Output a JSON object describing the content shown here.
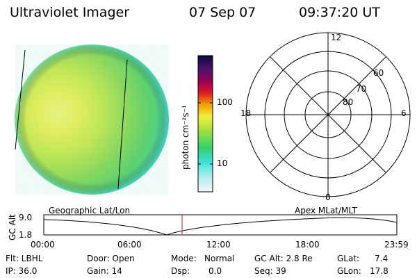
{
  "header": {
    "title": "Ultraviolet Imager",
    "date": "07 Sep 07",
    "time": "09:37:20 UT"
  },
  "colorbar": {
    "unit_label": "photon cm⁻²s⁻¹",
    "ticks": [
      "100",
      "10"
    ],
    "scale": "log",
    "colors": [
      "#f2f2f2",
      "#b8eef0",
      "#40e0d8",
      "#30d070",
      "#a0e040",
      "#f0f040",
      "#f0a000",
      "#e02020",
      "#a00050",
      "#501070",
      "#0a0a40"
    ]
  },
  "polar_grid": {
    "mlt_labels": [
      "12",
      "18",
      "6",
      "0"
    ],
    "lat_labels": [
      "60",
      "70",
      "80"
    ]
  },
  "orbit_panel": {
    "left_title": "Geographic Lat/Lon",
    "right_title": "Apex MLat/MLT",
    "y_axis_label": "GC Alt",
    "y_ticks": [
      "9.0",
      "1.8"
    ],
    "x_ticks": [
      "00:00",
      "06:00",
      "12:00",
      "18:00",
      "23:59"
    ],
    "current_time_marker": "09:37:20",
    "marker_color": "#d02020"
  },
  "info": {
    "flt": "Flt: LBHL",
    "ip": "IP: 36.0",
    "door": "Door: Open",
    "gain": "Gain: 14",
    "mode_label": "Mode:",
    "mode_value": "Normal",
    "dsp_label": "Dsp:",
    "dsp_value": "0.0",
    "gcalt": "GC Alt: 2.8 Re",
    "seq": "Seq: 39",
    "glat_label": "GLat:",
    "glat_value": "7.4",
    "glon_label": "GLon:",
    "glon_value": "17.8"
  }
}
